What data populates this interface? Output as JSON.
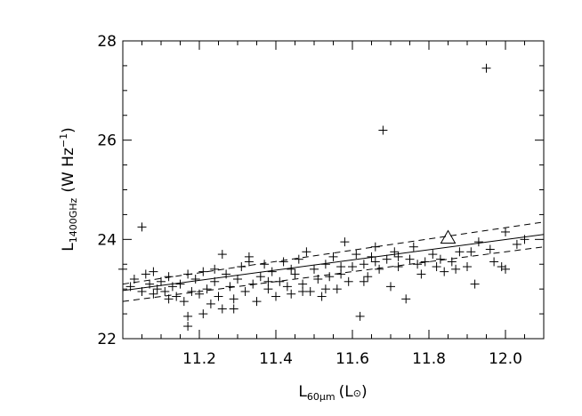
{
  "chart_data": {
    "type": "scatter",
    "xlabel": {
      "main": "L",
      "sub": "60μm",
      "unit": "(L",
      "unit_sub": "⊙",
      "unit_end": ")"
    },
    "ylabel": {
      "main": "L",
      "sub": "1400GHz",
      "unit": "(W Hz",
      "unit_sup": "−1",
      "unit_end": ")"
    },
    "xlim": [
      11.0,
      12.1
    ],
    "ylim": [
      22.0,
      28.0
    ],
    "x_ticks": [
      11.2,
      11.4,
      11.6,
      11.8,
      12.0
    ],
    "x_tick_labels": [
      "11.2",
      "11.4",
      "11.6",
      "11.8",
      "12.0"
    ],
    "y_ticks": [
      22,
      24,
      26,
      28
    ],
    "y_tick_labels": [
      "22",
      "24",
      "26",
      "28"
    ],
    "grid": false,
    "series": [
      {
        "marker": "plus",
        "points": [
          [
            11.0,
            23.4
          ],
          [
            11.02,
            23.05
          ],
          [
            11.03,
            23.2
          ],
          [
            11.05,
            22.95
          ],
          [
            11.05,
            24.25
          ],
          [
            11.06,
            23.3
          ],
          [
            11.07,
            23.1
          ],
          [
            11.08,
            22.9
          ],
          [
            11.09,
            23.0
          ],
          [
            11.1,
            23.15
          ],
          [
            11.11,
            22.95
          ],
          [
            11.12,
            23.25
          ],
          [
            11.13,
            23.05
          ],
          [
            11.14,
            22.85
          ],
          [
            11.15,
            23.1
          ],
          [
            11.16,
            22.75
          ],
          [
            11.17,
            23.3
          ],
          [
            11.17,
            22.45
          ],
          [
            11.17,
            22.25
          ],
          [
            11.18,
            22.95
          ],
          [
            11.19,
            23.2
          ],
          [
            11.2,
            22.9
          ],
          [
            11.21,
            22.5
          ],
          [
            11.21,
            23.35
          ],
          [
            11.22,
            23.0
          ],
          [
            11.23,
            22.7
          ],
          [
            11.24,
            23.15
          ],
          [
            11.25,
            22.85
          ],
          [
            11.26,
            23.7
          ],
          [
            11.26,
            22.6
          ],
          [
            11.27,
            23.3
          ],
          [
            11.28,
            23.05
          ],
          [
            11.29,
            22.8
          ],
          [
            11.3,
            23.2
          ],
          [
            11.31,
            23.45
          ],
          [
            11.32,
            22.95
          ],
          [
            11.33,
            23.65
          ],
          [
            11.34,
            23.1
          ],
          [
            11.35,
            22.75
          ],
          [
            11.36,
            23.25
          ],
          [
            11.37,
            23.5
          ],
          [
            11.38,
            23.0
          ],
          [
            11.39,
            23.35
          ],
          [
            11.4,
            22.85
          ],
          [
            11.41,
            23.15
          ],
          [
            11.42,
            23.55
          ],
          [
            11.43,
            23.05
          ],
          [
            11.44,
            22.9
          ],
          [
            11.45,
            23.3
          ],
          [
            11.46,
            23.6
          ],
          [
            11.47,
            23.1
          ],
          [
            11.48,
            23.75
          ],
          [
            11.49,
            22.95
          ],
          [
            11.5,
            23.4
          ],
          [
            11.51,
            23.2
          ],
          [
            11.52,
            22.85
          ],
          [
            11.53,
            23.5
          ],
          [
            11.54,
            23.25
          ],
          [
            11.55,
            23.65
          ],
          [
            11.56,
            23.0
          ],
          [
            11.57,
            23.3
          ],
          [
            11.58,
            23.95
          ],
          [
            11.59,
            23.15
          ],
          [
            11.6,
            23.45
          ],
          [
            11.61,
            23.7
          ],
          [
            11.62,
            22.45
          ],
          [
            11.63,
            23.5
          ],
          [
            11.64,
            23.25
          ],
          [
            11.65,
            23.65
          ],
          [
            11.66,
            23.85
          ],
          [
            11.67,
            23.4
          ],
          [
            11.68,
            26.2
          ],
          [
            11.69,
            23.6
          ],
          [
            11.7,
            23.05
          ],
          [
            11.71,
            23.75
          ],
          [
            11.72,
            23.45
          ],
          [
            11.74,
            22.8
          ],
          [
            11.75,
            23.6
          ],
          [
            11.76,
            23.85
          ],
          [
            11.78,
            23.3
          ],
          [
            11.79,
            23.55
          ],
          [
            11.81,
            23.7
          ],
          [
            11.82,
            23.45
          ],
          [
            11.84,
            23.35
          ],
          [
            11.86,
            23.55
          ],
          [
            11.88,
            23.75
          ],
          [
            11.9,
            23.45
          ],
          [
            11.92,
            23.1
          ],
          [
            11.93,
            23.95
          ],
          [
            11.95,
            27.45
          ],
          [
            11.96,
            23.8
          ],
          [
            11.97,
            23.55
          ],
          [
            11.99,
            23.45
          ],
          [
            12.0,
            24.15
          ],
          [
            12.0,
            23.4
          ],
          [
            12.03,
            23.9
          ],
          [
            12.05,
            24.0
          ],
          [
            11.08,
            23.35
          ],
          [
            11.12,
            22.8
          ],
          [
            11.24,
            23.4
          ],
          [
            11.29,
            22.6
          ],
          [
            11.33,
            23.55
          ],
          [
            11.38,
            23.15
          ],
          [
            11.44,
            23.4
          ],
          [
            11.47,
            22.95
          ],
          [
            11.53,
            23.0
          ],
          [
            11.57,
            23.45
          ],
          [
            11.63,
            23.15
          ],
          [
            11.66,
            23.55
          ],
          [
            11.72,
            23.65
          ],
          [
            11.77,
            23.5
          ],
          [
            11.83,
            23.6
          ],
          [
            11.87,
            23.4
          ],
          [
            11.91,
            23.75
          ]
        ]
      },
      {
        "marker": "triangle",
        "points": [
          [
            11.85,
            24.05
          ]
        ]
      }
    ],
    "fit_line": {
      "style": "solid",
      "x": [
        11.0,
        12.1
      ],
      "y": [
        22.97,
        24.1
      ]
    },
    "bounds": [
      {
        "style": "dashed",
        "x": [
          11.0,
          12.1
        ],
        "y": [
          23.1,
          24.35
        ]
      },
      {
        "style": "dashed",
        "x": [
          11.0,
          12.1
        ],
        "y": [
          22.75,
          23.85
        ]
      }
    ]
  }
}
